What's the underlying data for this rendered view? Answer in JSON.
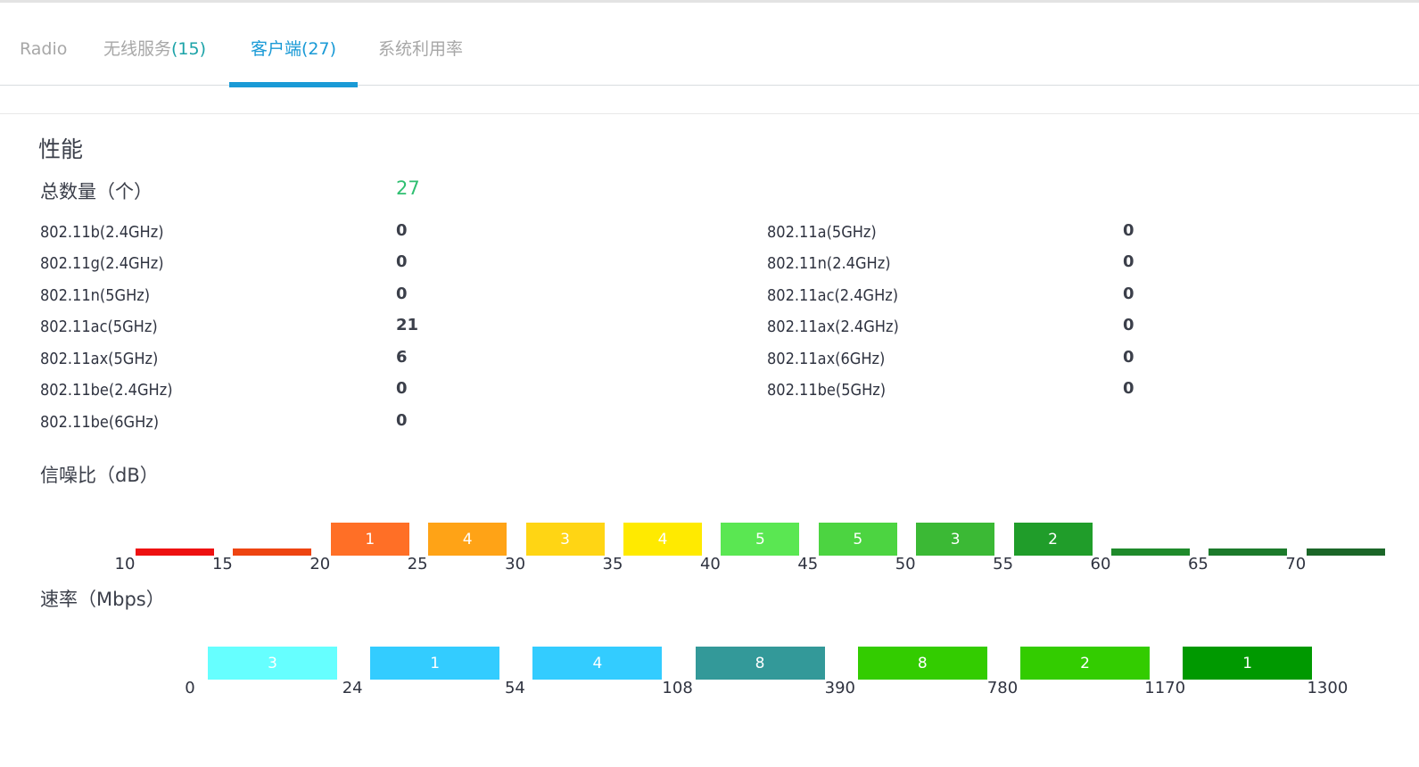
{
  "tabs": [
    {
      "label": "Radio",
      "count": ""
    },
    {
      "label": "无线服务",
      "count": "(15)"
    },
    {
      "label": "客户端",
      "count": "(27)"
    },
    {
      "label": "系统利用率",
      "count": ""
    }
  ],
  "performance": {
    "title": "性能",
    "total_label": "总数量（个）",
    "total_value": "27",
    "left_rows": [
      {
        "label": "802.11b(2.4GHz)",
        "value": "0"
      },
      {
        "label": "802.11g(2.4GHz)",
        "value": "0"
      },
      {
        "label": "802.11n(5GHz)",
        "value": "0"
      },
      {
        "label": "802.11ac(5GHz)",
        "value": "21"
      },
      {
        "label": "802.11ax(5GHz)",
        "value": "6"
      },
      {
        "label": "802.11be(2.4GHz)",
        "value": "0"
      },
      {
        "label": "802.11be(6GHz)",
        "value": "0"
      }
    ],
    "right_rows": [
      {
        "label": "802.11a(5GHz)",
        "value": "0"
      },
      {
        "label": "802.11n(2.4GHz)",
        "value": "0"
      },
      {
        "label": "802.11ac(2.4GHz)",
        "value": "0"
      },
      {
        "label": "802.11ax(2.4GHz)",
        "value": "0"
      },
      {
        "label": "802.11ax(6GHz)",
        "value": "0"
      },
      {
        "label": "802.11be(5GHz)",
        "value": "0"
      }
    ]
  },
  "snr": {
    "title": "信噪比（dB）",
    "ticks": [
      "10",
      "15",
      "20",
      "25",
      "30",
      "35",
      "40",
      "45",
      "50",
      "55",
      "60",
      "65",
      "70"
    ],
    "segments": [
      {
        "count": "",
        "color": "#ee1111"
      },
      {
        "count": "",
        "color": "#ee4411"
      },
      {
        "count": "1",
        "color": "#ff6f26"
      },
      {
        "count": "4",
        "color": "#ffa316"
      },
      {
        "count": "3",
        "color": "#ffd514"
      },
      {
        "count": "4",
        "color": "#ffea00"
      },
      {
        "count": "5",
        "color": "#5ae752"
      },
      {
        "count": "5",
        "color": "#4cd441"
      },
      {
        "count": "3",
        "color": "#3bb935"
      },
      {
        "count": "2",
        "color": "#209d2a"
      },
      {
        "count": "",
        "color": "#1f8a2b"
      },
      {
        "count": "",
        "color": "#1c7a2b"
      },
      {
        "count": "",
        "color": "#1b6628"
      }
    ]
  },
  "rate": {
    "title": "速率（Mbps）",
    "ticks": [
      "0",
      "24",
      "54",
      "108",
      "390",
      "780",
      "1170",
      "1300"
    ],
    "segments": [
      {
        "count": "3",
        "color": "#66ffff"
      },
      {
        "count": "1",
        "color": "#33ccff"
      },
      {
        "count": "4",
        "color": "#33ccff"
      },
      {
        "count": "8",
        "color": "#339999"
      },
      {
        "count": "8",
        "color": "#33cc00"
      },
      {
        "count": "2",
        "color": "#33cc00"
      },
      {
        "count": "1",
        "color": "#009900"
      }
    ]
  }
}
